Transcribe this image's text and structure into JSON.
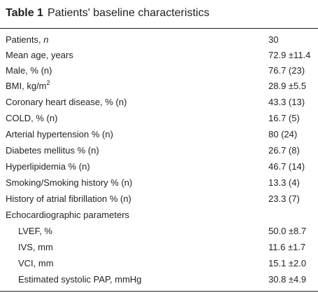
{
  "caption": {
    "label": "Table 1",
    "title": "Patients' baseline characteristics"
  },
  "rows": [
    {
      "name_prefix": "Patients, ",
      "name_italic": "n",
      "value": "30"
    },
    {
      "name": "Mean age, years",
      "value": "72.9 ±11.4"
    },
    {
      "name": "Male, % (n)",
      "value": "76.7 (23)"
    },
    {
      "name_prefix": "BMI, kg/m",
      "name_sup": "2",
      "value": "28.9 ±5.5"
    },
    {
      "name": "Coronary heart disease, % (n)",
      "value": "43.3 (13)"
    },
    {
      "name": "COLD, % (n)",
      "value": "16.7 (5)"
    },
    {
      "name": "Arterial hypertension % (n)",
      "value": "80 (24)"
    },
    {
      "name": "Diabetes mellitus % (n)",
      "value": "26.7 (8)"
    },
    {
      "name": "Hyperlipidemia % (n)",
      "value": "46.7 (14)"
    },
    {
      "name": "Smoking/Smoking history % (n)",
      "value": "13.3 (4)"
    },
    {
      "name": "History of atrial fibrillation % (n)",
      "value": "23.3 (7)"
    },
    {
      "name": "Echocardiographic parameters",
      "value": ""
    },
    {
      "name": "LVEF, %",
      "value": "50.0 ±8.7"
    },
    {
      "name": "IVS, mm",
      "value": "11.6 ±1.7"
    },
    {
      "name": "VCI, mm",
      "value": "15.1 ±2.0"
    },
    {
      "name": "Estimated systolic PAP, mmHg",
      "value": "30.8 ±4.9"
    }
  ]
}
